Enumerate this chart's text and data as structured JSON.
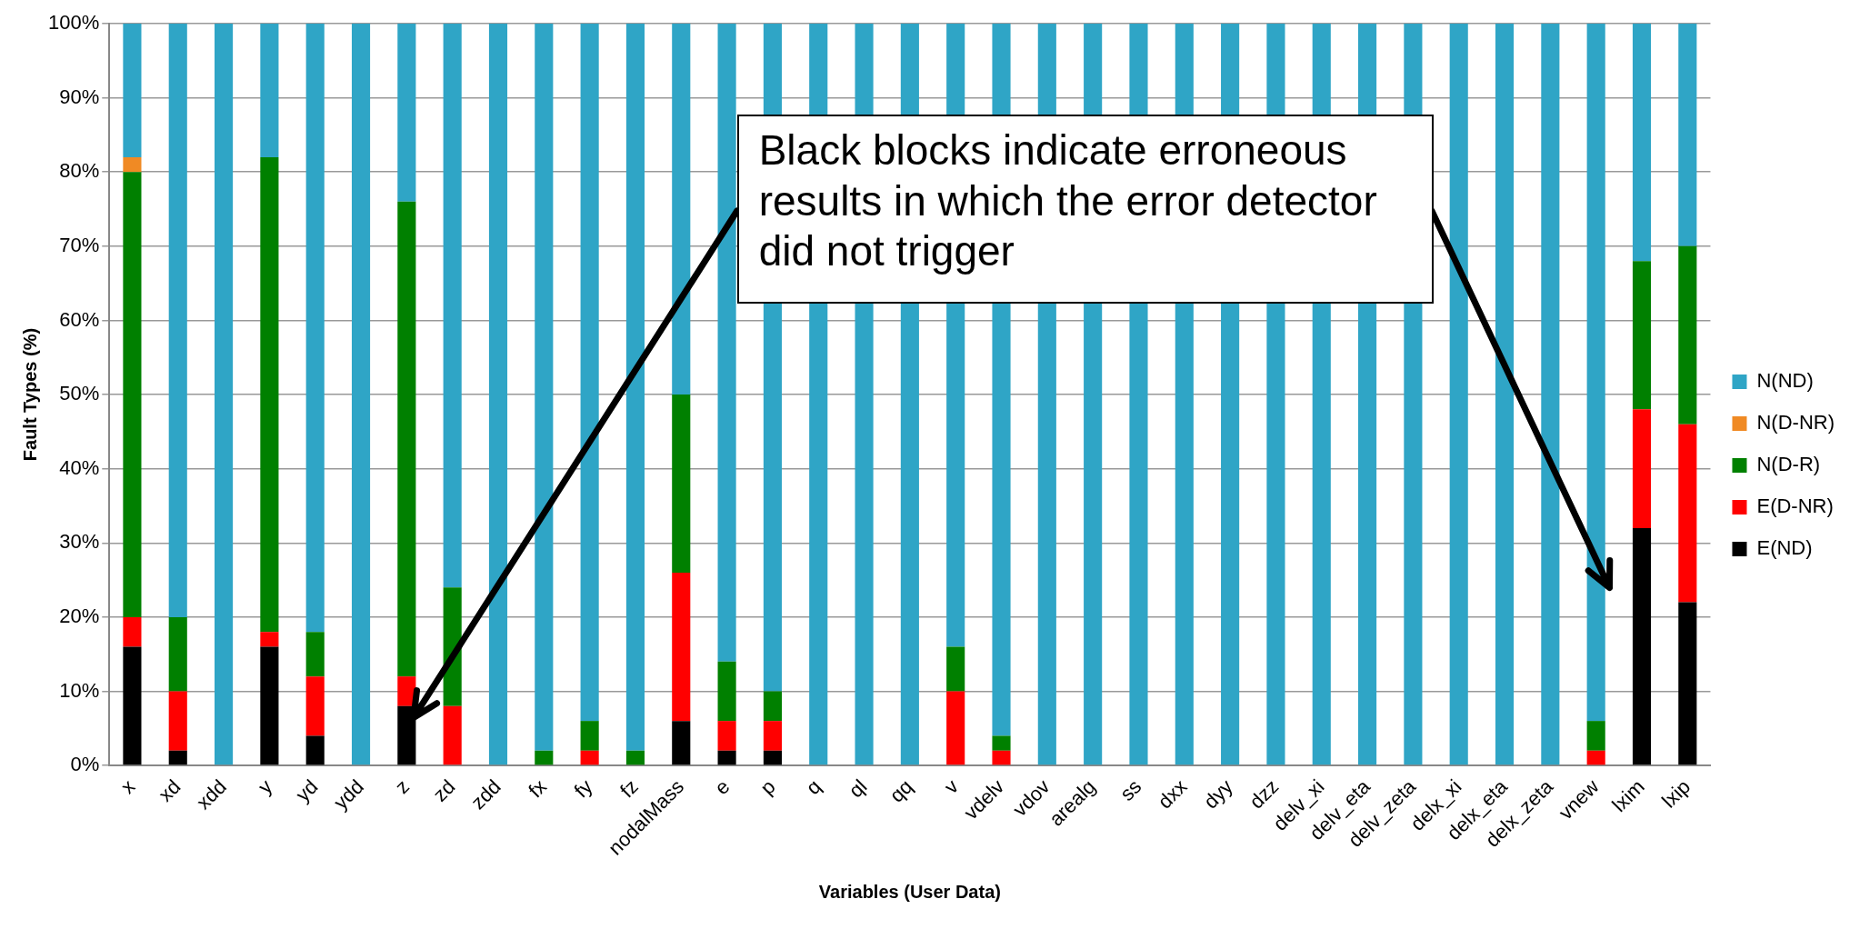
{
  "chart_data": {
    "type": "bar",
    "stacked": true,
    "xlabel": "Variables (User Data)",
    "ylabel": "Fault Types (%)",
    "categories": [
      "x",
      "xd",
      "xdd",
      "y",
      "yd",
      "ydd",
      "z",
      "zd",
      "zdd",
      "fx",
      "fy",
      "fz",
      "nodalMass",
      "e",
      "p",
      "q",
      "ql",
      "qq",
      "v",
      "vdelv",
      "vdov",
      "arealg",
      "ss",
      "dxx",
      "dyy",
      "dzz",
      "delv_xi",
      "delv_eta",
      "delv_zeta",
      "delx_xi",
      "delx_eta",
      "delx_zeta",
      "vnew",
      "lxim",
      "lxip"
    ],
    "series": [
      {
        "name": "E(ND)",
        "color": "#000000",
        "values": [
          16,
          2,
          0,
          16,
          4,
          0,
          8,
          0,
          0,
          0,
          0,
          0,
          6,
          2,
          2,
          0,
          0,
          0,
          0,
          0,
          0,
          0,
          0,
          0,
          0,
          0,
          0,
          0,
          0,
          0,
          0,
          0,
          0,
          32,
          22
        ]
      },
      {
        "name": "E(D-NR)",
        "color": "#ff0000",
        "values": [
          4,
          8,
          0,
          2,
          8,
          0,
          4,
          8,
          0,
          0,
          2,
          0,
          20,
          4,
          4,
          0,
          0,
          0,
          10,
          2,
          0,
          0,
          0,
          0,
          0,
          0,
          0,
          0,
          0,
          0,
          0,
          0,
          2,
          16,
          24
        ]
      },
      {
        "name": "N(D-R)",
        "color": "#008000",
        "values": [
          60,
          10,
          0,
          64,
          6,
          0,
          64,
          16,
          0,
          2,
          4,
          2,
          24,
          8,
          4,
          0,
          0,
          0,
          6,
          2,
          0,
          0,
          0,
          0,
          0,
          0,
          0,
          0,
          0,
          0,
          0,
          0,
          4,
          20,
          24
        ]
      },
      {
        "name": "N(D-NR)",
        "color": "#f08a24",
        "values": [
          2,
          0,
          0,
          0,
          0,
          0,
          0,
          0,
          0,
          0,
          0,
          0,
          0,
          0,
          0,
          0,
          0,
          0,
          0,
          0,
          0,
          0,
          0,
          0,
          0,
          0,
          0,
          0,
          0,
          0,
          0,
          0,
          0,
          0,
          0
        ]
      },
      {
        "name": "N(ND)",
        "color": "#2fa5c6",
        "values": [
          18,
          80,
          100,
          18,
          82,
          100,
          24,
          76,
          100,
          98,
          94,
          98,
          50,
          86,
          90,
          100,
          100,
          100,
          84,
          96,
          100,
          100,
          100,
          100,
          100,
          100,
          100,
          100,
          100,
          100,
          100,
          100,
          94,
          32,
          30
        ]
      }
    ],
    "ylim": [
      0,
      100
    ],
    "yticks": [
      {
        "value": 0,
        "label": "0%"
      },
      {
        "value": 10,
        "label": "10%"
      },
      {
        "value": 20,
        "label": "20%"
      },
      {
        "value": 30,
        "label": "30%"
      },
      {
        "value": 40,
        "label": "40%"
      },
      {
        "value": 50,
        "label": "50%"
      },
      {
        "value": 60,
        "label": "60%"
      },
      {
        "value": 70,
        "label": "70%"
      },
      {
        "value": 80,
        "label": "80%"
      },
      {
        "value": 90,
        "label": "90%"
      },
      {
        "value": 100,
        "label": "100%"
      }
    ],
    "grid": "y",
    "legend": "right",
    "annotations": [
      "Black blocks indicate erroneous results in which the error detector did not trigger"
    ]
  }
}
